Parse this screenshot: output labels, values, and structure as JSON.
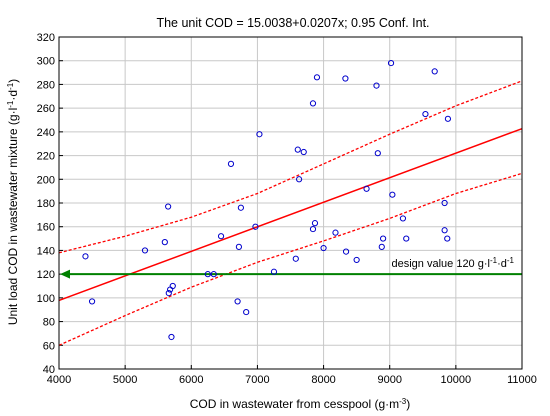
{
  "chart_data": {
    "type": "scatter",
    "title": "The unit COD = 15.0038+0.0207x; 0.95 Conf. Int.",
    "xlabel": "COD in wastewater from cesspool (g·m",
    "xlabel_sup": "-3",
    "xlabel_end": ")",
    "ylabel": "Unit load COD in wastewater mixture (g·l",
    "ylabel_sup1": "-1",
    "ylabel_mid": "·d",
    "ylabel_sup2": "-1",
    "ylabel_end": ")",
    "xlim": [
      4000,
      11000
    ],
    "ylim": [
      40,
      320
    ],
    "x_ticks": [
      4000,
      5000,
      6000,
      7000,
      8000,
      9000,
      10000,
      11000
    ],
    "y_ticks": [
      40,
      60,
      80,
      100,
      120,
      140,
      160,
      180,
      200,
      220,
      240,
      260,
      280,
      300,
      320
    ],
    "grid": true,
    "points": [
      [
        4400,
        135
      ],
      [
        4500,
        97
      ],
      [
        5300,
        140
      ],
      [
        5600,
        147
      ],
      [
        5650,
        177
      ],
      [
        5660,
        104
      ],
      [
        5680,
        107
      ],
      [
        5720,
        110
      ],
      [
        5700,
        67
      ],
      [
        6250,
        120
      ],
      [
        6340,
        120
      ],
      [
        6450,
        152
      ],
      [
        6600,
        213
      ],
      [
        6700,
        97
      ],
      [
        6720,
        143
      ],
      [
        6750,
        176
      ],
      [
        6830,
        88
      ],
      [
        6970,
        160
      ],
      [
        7030,
        238
      ],
      [
        7250,
        122
      ],
      [
        7580,
        133
      ],
      [
        7610,
        225
      ],
      [
        7630,
        200
      ],
      [
        7700,
        223
      ],
      [
        7840,
        158
      ],
      [
        7840,
        264
      ],
      [
        7870,
        163
      ],
      [
        7900,
        286
      ],
      [
        8000,
        142
      ],
      [
        8180,
        155
      ],
      [
        8330,
        285
      ],
      [
        8340,
        139
      ],
      [
        8500,
        132
      ],
      [
        8650,
        192
      ],
      [
        8800,
        279
      ],
      [
        8820,
        222
      ],
      [
        8880,
        143
      ],
      [
        8900,
        150
      ],
      [
        9020,
        298
      ],
      [
        9040,
        187
      ],
      [
        9200,
        167
      ],
      [
        9250,
        150
      ],
      [
        9540,
        255
      ],
      [
        9680,
        291
      ],
      [
        9830,
        180
      ],
      [
        9830,
        157
      ],
      [
        9870,
        150
      ],
      [
        9880,
        251
      ]
    ],
    "regression": {
      "intercept": 15.0038,
      "slope": 0.0207,
      "color": "#ff0000"
    },
    "confidence_upper": [
      [
        4000,
        138
      ],
      [
        5000,
        152
      ],
      [
        6000,
        168
      ],
      [
        7000,
        188
      ],
      [
        8000,
        213
      ],
      [
        9000,
        238
      ],
      [
        10000,
        262
      ],
      [
        11000,
        283
      ]
    ],
    "confidence_lower": [
      [
        4000,
        60
      ],
      [
        5000,
        85
      ],
      [
        6000,
        109
      ],
      [
        7000,
        130
      ],
      [
        8000,
        148
      ],
      [
        9000,
        167
      ],
      [
        10000,
        188
      ],
      [
        11000,
        205
      ]
    ],
    "design_value": {
      "y": 120,
      "color": "#008000",
      "label": "design value 120 g·l",
      "label_sup1": "-1",
      "label_mid": "·d",
      "label_sup2": "-1"
    },
    "point_color": "#0000cc"
  }
}
